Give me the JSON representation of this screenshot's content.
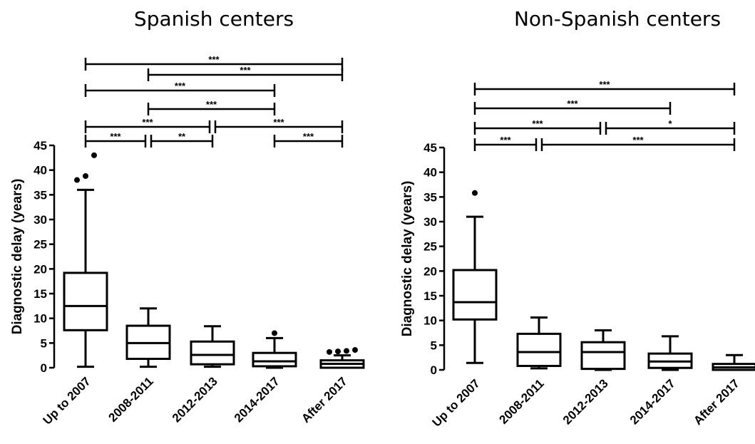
{
  "chart_data": [
    {
      "type": "box",
      "title": "Spanish centers",
      "ylabel": "Diagnostic delay (years)",
      "ylim": [
        0,
        45
      ],
      "yticks": [
        0,
        5,
        10,
        15,
        20,
        25,
        30,
        35,
        40,
        45
      ],
      "categories": [
        "Up to 2007",
        "2008-2011",
        "2012-2013",
        "2014-2017",
        "After 2017"
      ],
      "boxes": [
        {
          "category": "Up to 2007",
          "whisker_low": 0.2,
          "q1": 7.6,
          "median": 12.5,
          "q3": 19.2,
          "whisker_high": 36,
          "outliers": [
            38,
            38.8,
            43
          ]
        },
        {
          "category": "2008-2011",
          "whisker_low": 0.2,
          "q1": 1.8,
          "median": 5,
          "q3": 8.5,
          "whisker_high": 12,
          "outliers": []
        },
        {
          "category": "2012-2013",
          "whisker_low": 0.2,
          "q1": 0.7,
          "median": 2.6,
          "q3": 5.3,
          "whisker_high": 8.4,
          "outliers": []
        },
        {
          "category": "2014-2017",
          "whisker_low": 0,
          "q1": 0.3,
          "median": 1.3,
          "q3": 3,
          "whisker_high": 6,
          "outliers": [
            7
          ]
        },
        {
          "category": "After 2017",
          "whisker_low": 0,
          "q1": 0,
          "median": 0.8,
          "q3": 1.5,
          "whisker_high": 2.5,
          "outliers": [
            3.2,
            3.3,
            3.4,
            3.6
          ]
        }
      ],
      "comparisons": [
        {
          "from": "Up to 2007",
          "to": "After 2017",
          "label": "***"
        },
        {
          "from": "2008-2011",
          "to": "After 2017",
          "label": "***"
        },
        {
          "from": "Up to 2007",
          "to": "2014-2017",
          "label": "***"
        },
        {
          "from": "2008-2011",
          "to": "2014-2017",
          "label": "***"
        },
        {
          "from": "Up to 2007",
          "to": "2012-2013",
          "label": "***"
        },
        {
          "from": "2012-2013",
          "to": "After 2017",
          "label": "***"
        },
        {
          "from": "Up to 2007",
          "to": "2008-2011",
          "label": "***"
        },
        {
          "from": "2008-2011",
          "to": "2012-2013",
          "label": "**"
        },
        {
          "from": "2014-2017",
          "to": "After 2017",
          "label": "***"
        }
      ]
    },
    {
      "type": "box",
      "title": "Non-Spanish centers",
      "ylabel": "Diagnostic delay (years)",
      "ylim": [
        0,
        45
      ],
      "yticks": [
        0,
        5,
        10,
        15,
        20,
        25,
        30,
        35,
        40,
        45
      ],
      "categories": [
        "Up to 2007",
        "2008-2011",
        "2012-2013",
        "2014-2017",
        "After 2017"
      ],
      "boxes": [
        {
          "category": "Up to 2007",
          "whisker_low": 1.4,
          "q1": 10.2,
          "median": 13.7,
          "q3": 20.2,
          "whisker_high": 31,
          "outliers": [
            35.8
          ]
        },
        {
          "category": "2008-2011",
          "whisker_low": 0.3,
          "q1": 0.8,
          "median": 3.6,
          "q3": 7.3,
          "whisker_high": 10.6,
          "outliers": []
        },
        {
          "category": "2012-2013",
          "whisker_low": 0,
          "q1": 0.2,
          "median": 3.6,
          "q3": 5.6,
          "whisker_high": 8,
          "outliers": []
        },
        {
          "category": "2014-2017",
          "whisker_low": 0,
          "q1": 0.4,
          "median": 1.7,
          "q3": 3.3,
          "whisker_high": 6.8,
          "outliers": []
        },
        {
          "category": "After 2017",
          "whisker_low": 0,
          "q1": 0,
          "median": 0.5,
          "q3": 1.2,
          "whisker_high": 3,
          "outliers": []
        }
      ],
      "comparisons": [
        {
          "from": "Up to 2007",
          "to": "After 2017",
          "label": "***"
        },
        {
          "from": "Up to 2007",
          "to": "2014-2017",
          "label": "***"
        },
        {
          "from": "Up to 2007",
          "to": "2012-2013",
          "label": "***"
        },
        {
          "from": "2012-2013",
          "to": "After 2017",
          "label": "*"
        },
        {
          "from": "Up to 2007",
          "to": "2008-2011",
          "label": "***"
        },
        {
          "from": "2008-2011",
          "to": "After 2017",
          "label": "***"
        }
      ]
    }
  ]
}
